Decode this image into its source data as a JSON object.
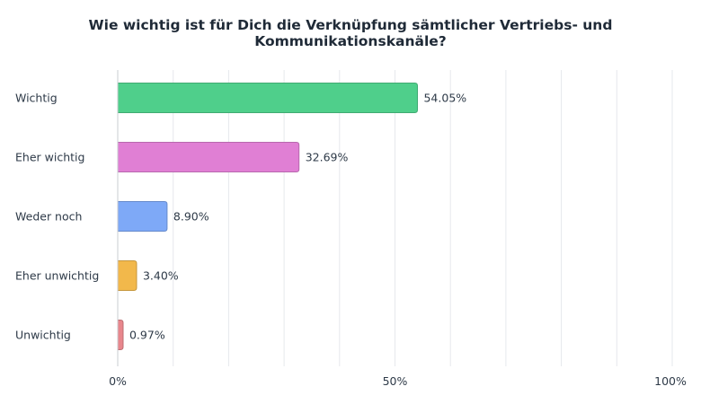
{
  "title": "Wie wichtig ist für Dich die Verknüpfung sämtlicher Vertriebs- und Kommunikationskanäle?",
  "chart_data": {
    "type": "bar",
    "orientation": "horizontal",
    "title": "Wie wichtig ist für Dich die Verknüpfung sämtlicher Vertriebs- und Kommunikationskanäle?",
    "categories": [
      "Wichtig",
      "Eher wichtig",
      "Weder noch",
      "Eher unwichtig",
      "Unwichtig"
    ],
    "values": [
      54.05,
      32.69,
      8.9,
      3.4,
      0.97
    ],
    "value_labels": [
      "54.05%",
      "32.69%",
      "8.90%",
      "3.40%",
      "0.97%"
    ],
    "colors": [
      "#4fcf8b",
      "#e07fd4",
      "#7ea9f7",
      "#f2b84b",
      "#e8868c"
    ],
    "xlim": [
      0,
      100
    ],
    "x_ticks": [
      0,
      50,
      100
    ],
    "x_tick_labels": [
      "0%",
      "50%",
      "100%"
    ],
    "grid": true,
    "legend": "none"
  }
}
